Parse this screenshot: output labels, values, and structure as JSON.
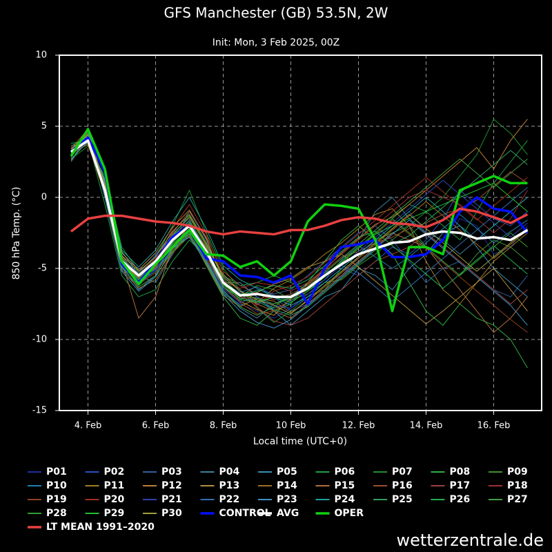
{
  "chart_data": {
    "type": "line",
    "title": "GFS Manchester (GB) 53.5N, 2W",
    "subtitle": "Init: Mon, 3 Feb 2025, 00Z",
    "y_label": "850 hPa Temp. (°C)",
    "x_label": "Local time (UTC+0)",
    "source": "wetterzentrale.de",
    "categories": [
      null,
      "4. Feb",
      null,
      null,
      null,
      "6. Feb",
      null,
      null,
      null,
      "8. Feb",
      null,
      null,
      null,
      "10 Feb",
      null,
      null,
      null,
      "12. Feb",
      null,
      null,
      null,
      "14. Feb",
      null,
      null,
      null,
      "16. Feb",
      null,
      null
    ],
    "ylim": [
      -15,
      10
    ],
    "yticks": [
      -15,
      -10,
      -5,
      0,
      5,
      10
    ],
    "grid": true,
    "series": [
      {
        "name": "P01",
        "color": "#2030a0",
        "width": 1,
        "values": [
          3.0,
          4.3,
          1.0,
          -4.0,
          -5.8,
          -4.0,
          -2.5,
          -1.5,
          -4.5,
          -6.8,
          -7.5,
          -8.0,
          -8.5,
          -7.8,
          -7.0,
          -6.0,
          -5.5,
          -4.2,
          -3.0,
          -2.0,
          -1.0,
          -2.5,
          -3.5,
          -1.5,
          -2.0,
          -4.0,
          -3.5,
          -2.0
        ]
      },
      {
        "name": "P02",
        "color": "#2850c0",
        "width": 1,
        "values": [
          2.8,
          4.5,
          0.0,
          -5.0,
          -6.2,
          -5.0,
          -3.5,
          -2.5,
          -3.5,
          -5.5,
          -6.5,
          -7.5,
          -7.0,
          -8.0,
          -7.5,
          -6.5,
          -5.0,
          -5.5,
          -4.5,
          -3.5,
          -4.0,
          -3.0,
          -1.5,
          0.5,
          -0.5,
          -1.5,
          -2.0,
          -1.0
        ]
      },
      {
        "name": "P03",
        "color": "#3060a0",
        "width": 1,
        "values": [
          3.5,
          3.8,
          0.8,
          -4.2,
          -5.0,
          -4.8,
          -3.2,
          -1.0,
          -3.0,
          -5.8,
          -7.2,
          -6.5,
          -6.8,
          -6.5,
          -5.5,
          -4.5,
          -3.5,
          -2.5,
          -2.0,
          -3.0,
          -4.5,
          -6.0,
          -5.0,
          -4.5,
          -5.5,
          -6.5,
          -7.0,
          -5.5
        ]
      },
      {
        "name": "P04",
        "color": "#4080a0",
        "width": 1,
        "values": [
          2.5,
          4.2,
          1.2,
          -3.8,
          -5.5,
          -6.0,
          -4.0,
          -2.2,
          -4.0,
          -6.5,
          -7.8,
          -8.5,
          -7.5,
          -7.0,
          -6.0,
          -5.0,
          -4.0,
          -3.0,
          -1.0,
          0.0,
          -1.5,
          -2.5,
          -3.0,
          -4.0,
          -3.0,
          -2.0,
          -1.0,
          0.0
        ]
      },
      {
        "name": "P05",
        "color": "#3a90b0",
        "width": 1,
        "values": [
          3.0,
          4.6,
          0.2,
          -4.8,
          -6.5,
          -5.5,
          -3.0,
          -1.8,
          -3.5,
          -6.0,
          -6.0,
          -7.0,
          -8.0,
          -9.0,
          -8.0,
          -7.0,
          -6.5,
          -5.0,
          -5.5,
          -6.5,
          -5.0,
          -4.0,
          -2.5,
          -2.0,
          -3.5,
          -5.0,
          -6.0,
          -7.0
        ]
      },
      {
        "name": "P06",
        "color": "#20a040",
        "width": 1,
        "values": [
          3.8,
          4.0,
          -0.5,
          -5.5,
          -7.0,
          -6.5,
          -4.5,
          -3.0,
          -4.2,
          -5.5,
          -6.2,
          -6.0,
          -5.5,
          -6.0,
          -6.5,
          -5.5,
          -4.5,
          -3.5,
          -2.5,
          -1.5,
          -0.5,
          -1.0,
          -2.0,
          -3.0,
          -1.0,
          1.0,
          2.5,
          4.0
        ]
      },
      {
        "name": "P07",
        "color": "#209030",
        "width": 1,
        "values": [
          2.7,
          3.6,
          1.5,
          -3.5,
          -5.2,
          -4.2,
          -2.0,
          0.5,
          -2.5,
          -5.0,
          -6.5,
          -7.8,
          -8.8,
          -8.0,
          -7.0,
          -6.5,
          -5.0,
          -4.0,
          -3.0,
          -2.5,
          -2.0,
          -1.0,
          0.0,
          1.5,
          3.0,
          5.5,
          4.5,
          3.0
        ]
      },
      {
        "name": "P08",
        "color": "#30b040",
        "width": 1,
        "values": [
          3.1,
          4.4,
          0.6,
          -4.6,
          -5.8,
          -5.0,
          -3.8,
          -2.5,
          -4.8,
          -7.0,
          -8.5,
          -9.0,
          -8.0,
          -7.5,
          -6.0,
          -4.5,
          -3.0,
          -2.0,
          -3.0,
          -4.0,
          -6.0,
          -8.0,
          -9.0,
          -7.5,
          -8.5,
          -9.0,
          -10.0,
          -12.0
        ]
      },
      {
        "name": "P09",
        "color": "#409030",
        "width": 1,
        "values": [
          3.3,
          3.9,
          0.9,
          -4.4,
          -5.6,
          -4.6,
          -2.8,
          -1.6,
          -3.6,
          -6.2,
          -7.0,
          -6.2,
          -6.5,
          -7.2,
          -6.8,
          -6.0,
          -5.8,
          -4.8,
          -4.0,
          -3.0,
          -2.0,
          -3.5,
          -4.5,
          -5.5,
          -4.0,
          -3.0,
          -3.5,
          -4.5
        ]
      },
      {
        "name": "P10",
        "color": "#2080b0",
        "width": 1,
        "values": [
          2.9,
          4.1,
          0.3,
          -4.9,
          -6.0,
          -5.2,
          -3.6,
          -2.6,
          -4.4,
          -6.6,
          -7.6,
          -7.2,
          -7.8,
          -7.4,
          -6.6,
          -5.8,
          -4.4,
          -3.4,
          -4.2,
          -5.0,
          -4.2,
          -3.2,
          -2.2,
          -1.2,
          -2.2,
          -3.2,
          -2.4,
          -1.6
        ]
      },
      {
        "name": "P11",
        "color": "#a08020",
        "width": 1,
        "values": [
          3.4,
          4.8,
          0.7,
          -4.3,
          -5.4,
          -4.4,
          -2.6,
          -1.4,
          -3.4,
          -5.4,
          -6.6,
          -7.4,
          -6.4,
          -5.8,
          -5.0,
          -4.0,
          -3.2,
          -2.2,
          -1.2,
          -0.8,
          -2.0,
          -4.5,
          -6.5,
          -7.5,
          -6.0,
          -4.5,
          -3.5,
          -2.5
        ]
      },
      {
        "name": "P12",
        "color": "#c08030",
        "width": 1,
        "values": [
          3.2,
          3.7,
          0.4,
          -4.6,
          -5.7,
          -4.7,
          -3.3,
          -2.3,
          -4.1,
          -6.3,
          -7.3,
          -7.9,
          -8.3,
          -7.1,
          -6.1,
          -5.1,
          -3.9,
          -2.9,
          -1.9,
          -1.4,
          -0.5,
          0.5,
          1.5,
          2.5,
          3.5,
          2.0,
          4.0,
          5.5
        ]
      },
      {
        "name": "P13",
        "color": "#b09040",
        "width": 1,
        "values": [
          2.6,
          4.3,
          1.1,
          -3.9,
          -5.1,
          -3.9,
          -2.1,
          -0.9,
          -2.9,
          -5.9,
          -6.9,
          -6.7,
          -6.1,
          -5.7,
          -4.9,
          -4.5,
          -4.0,
          -4.9,
          -5.9,
          -6.9,
          -7.9,
          -8.9,
          -8.0,
          -7.0,
          -6.0,
          -5.0,
          -6.5,
          -8.0
        ]
      },
      {
        "name": "P14",
        "color": "#a07020",
        "width": 1,
        "values": [
          3.6,
          4.2,
          0.1,
          -5.1,
          -6.4,
          -5.8,
          -3.9,
          -2.7,
          -4.7,
          -6.9,
          -7.7,
          -7.1,
          -7.3,
          -8.1,
          -7.3,
          -6.3,
          -5.3,
          -4.3,
          -3.3,
          -2.3,
          -1.3,
          -0.3,
          -1.3,
          -2.3,
          -3.3,
          -4.3,
          -3.3,
          -2.3
        ]
      },
      {
        "name": "P15",
        "color": "#b07040",
        "width": 1,
        "values": [
          3.0,
          4.0,
          0.5,
          -4.5,
          -8.5,
          -7.0,
          -3.5,
          -2.0,
          -3.5,
          -6.0,
          -7.0,
          -7.5,
          -8.0,
          -8.5,
          -7.5,
          -6.5,
          -5.5,
          -4.5,
          -3.5,
          -2.5,
          -3.0,
          -3.5,
          -5.0,
          -6.5,
          -8.0,
          -9.5,
          -8.5,
          -7.0
        ]
      },
      {
        "name": "P16",
        "color": "#a05030",
        "width": 1,
        "values": [
          3.3,
          4.5,
          0.8,
          -4.2,
          -5.5,
          -5.0,
          -2.5,
          -1.0,
          -2.8,
          -5.2,
          -6.2,
          -6.8,
          -7.2,
          -6.8,
          -6.2,
          -5.2,
          -4.2,
          -3.8,
          -3.2,
          -2.8,
          -2.2,
          -1.8,
          -1.2,
          -0.8,
          -0.2,
          0.8,
          1.8,
          1.0
        ]
      },
      {
        "name": "P17",
        "color": "#a04040",
        "width": 1,
        "values": [
          2.8,
          4.6,
          0.3,
          -4.7,
          -5.9,
          -4.9,
          -3.1,
          -2.1,
          -4.1,
          -6.1,
          -6.8,
          -7.7,
          -8.7,
          -9.0,
          -8.5,
          -7.5,
          -6.5,
          -5.5,
          -4.5,
          -4.0,
          -3.5,
          -2.5,
          -3.5,
          -4.5,
          -5.5,
          -6.5,
          -7.5,
          -6.5
        ]
      },
      {
        "name": "P18",
        "color": "#a03030",
        "width": 1,
        "values": [
          3.5,
          4.1,
          0.6,
          -4.4,
          -5.3,
          -4.3,
          -2.9,
          -1.9,
          -3.9,
          -5.9,
          -6.4,
          -6.0,
          -6.2,
          -6.6,
          -6.0,
          -5.0,
          -4.0,
          -3.0,
          -2.0,
          -1.0,
          0.0,
          0.5,
          0.0,
          -0.5,
          -1.5,
          -2.5,
          -1.5,
          0.5
        ]
      },
      {
        "name": "P19",
        "color": "#904020",
        "width": 1,
        "values": [
          3.1,
          3.8,
          0.2,
          -4.8,
          -6.1,
          -5.3,
          -3.7,
          -2.4,
          -4.3,
          -6.4,
          -7.4,
          -8.2,
          -8.0,
          -7.2,
          -6.6,
          -5.6,
          -4.6,
          -3.6,
          -2.6,
          -1.6,
          -2.6,
          -3.6,
          -4.6,
          -5.6,
          -6.6,
          -7.6,
          -8.6,
          -9.5
        ]
      },
      {
        "name": "P20",
        "color": "#a03020",
        "width": 1,
        "values": [
          2.9,
          4.4,
          0.9,
          -4.1,
          -5.6,
          -4.6,
          -2.2,
          -0.5,
          -2.6,
          -5.6,
          -6.6,
          -7.6,
          -6.6,
          -6.2,
          -5.6,
          -4.6,
          -3.6,
          -2.6,
          -1.6,
          -0.6,
          0.4,
          1.4,
          0.4,
          -0.6,
          -1.6,
          -0.6,
          0.4,
          1.4
        ]
      },
      {
        "name": "P21",
        "color": "#3040b0",
        "width": 1,
        "values": [
          3.4,
          4.2,
          0.4,
          -4.6,
          -5.9,
          -5.1,
          -3.4,
          -2.4,
          -4.4,
          -6.4,
          -7.4,
          -7.0,
          -7.6,
          -7.8,
          -6.8,
          -5.8,
          -4.8,
          -3.8,
          -2.8,
          -1.8,
          -0.8,
          0.2,
          1.2,
          0.2,
          -0.8,
          -1.8,
          -2.8,
          -1.8
        ]
      },
      {
        "name": "P22",
        "color": "#3070b0",
        "width": 1,
        "values": [
          3.0,
          4.0,
          0.8,
          -4.3,
          -5.3,
          -4.1,
          -2.7,
          -1.7,
          -3.7,
          -6.0,
          -6.7,
          -6.3,
          -6.9,
          -7.3,
          -6.3,
          -5.3,
          -4.8,
          -5.3,
          -6.3,
          -7.3,
          -6.3,
          -5.3,
          -4.3,
          -3.3,
          -2.3,
          -1.3,
          -0.3,
          0.7
        ]
      },
      {
        "name": "P23",
        "color": "#4090c0",
        "width": 1,
        "values": [
          3.2,
          4.7,
          0.0,
          -5.2,
          -6.6,
          -5.6,
          -3.6,
          -2.8,
          -4.6,
          -6.8,
          -8.0,
          -8.8,
          -9.2,
          -8.6,
          -7.6,
          -6.6,
          -5.6,
          -4.6,
          -3.6,
          -2.6,
          -1.6,
          -2.6,
          -3.6,
          -4.6,
          -5.6,
          -6.6,
          -7.6,
          -9.0
        ]
      },
      {
        "name": "P24",
        "color": "#20a0a0",
        "width": 1,
        "values": [
          2.7,
          3.9,
          1.3,
          -3.7,
          -4.9,
          -3.7,
          -1.7,
          0.0,
          -2.2,
          -4.8,
          -5.8,
          -6.4,
          -7.0,
          -7.6,
          -7.0,
          -6.0,
          -5.0,
          -4.0,
          -3.0,
          -2.0,
          -1.0,
          0.0,
          -1.0,
          -2.0,
          -3.0,
          -2.0,
          -1.0,
          0.0
        ]
      },
      {
        "name": "P25",
        "color": "#30a060",
        "width": 1,
        "values": [
          3.6,
          4.3,
          0.5,
          -4.5,
          -5.6,
          -4.8,
          -3.3,
          -2.2,
          -4.0,
          -6.3,
          -7.1,
          -7.3,
          -7.9,
          -8.3,
          -7.7,
          -6.7,
          -5.7,
          -4.7,
          -3.7,
          -3.3,
          -2.7,
          -1.7,
          -0.7,
          0.3,
          1.3,
          2.3,
          3.3,
          2.3
        ]
      },
      {
        "name": "P26",
        "color": "#20b050",
        "width": 1,
        "values": [
          3.1,
          4.1,
          0.6,
          -4.4,
          -5.4,
          -4.4,
          -3.0,
          -1.8,
          -3.8,
          -6.0,
          -6.8,
          -6.6,
          -6.2,
          -6.4,
          -5.8,
          -4.8,
          -3.8,
          -2.8,
          -2.4,
          -3.4,
          -4.4,
          -5.4,
          -6.4,
          -5.4,
          -4.4,
          -3.4,
          -4.4,
          -5.4
        ]
      },
      {
        "name": "P27",
        "color": "#40a040",
        "width": 1,
        "values": [
          2.8,
          4.5,
          0.3,
          -4.9,
          -6.3,
          -5.5,
          -3.8,
          -2.6,
          -4.5,
          -6.7,
          -7.7,
          -8.3,
          -7.7,
          -6.9,
          -6.3,
          -5.3,
          -4.3,
          -3.3,
          -2.3,
          -1.3,
          -0.3,
          0.7,
          1.7,
          2.7,
          1.7,
          0.7,
          1.7,
          2.7
        ]
      },
      {
        "name": "P28",
        "color": "#30a030",
        "width": 1,
        "values": [
          3.3,
          4.0,
          0.7,
          -4.3,
          -5.5,
          -4.5,
          -2.7,
          -1.3,
          -3.3,
          -5.7,
          -6.9,
          -7.1,
          -7.5,
          -7.1,
          -6.5,
          -5.5,
          -4.5,
          -3.5,
          -2.5,
          -1.5,
          -2.5,
          -3.5,
          -4.5,
          -5.5,
          -4.5,
          -3.5,
          -2.5,
          -3.5
        ]
      },
      {
        "name": "P29",
        "color": "#20c030",
        "width": 1,
        "values": [
          3.0,
          4.2,
          0.4,
          -4.7,
          -5.8,
          -4.8,
          -3.2,
          -2.0,
          -3.9,
          -6.1,
          -7.2,
          -7.4,
          -7.0,
          -7.4,
          -6.6,
          -5.6,
          -4.6,
          -3.6,
          -2.6,
          -2.0,
          -1.5,
          -1.0,
          -0.5,
          0.0,
          0.5,
          1.0,
          0.0,
          -1.0
        ]
      },
      {
        "name": "P30",
        "color": "#a0a040",
        "width": 1,
        "values": [
          3.4,
          4.4,
          0.9,
          -4.1,
          -5.2,
          -4.2,
          -2.4,
          -1.2,
          -3.2,
          -5.6,
          -6.6,
          -7.2,
          -7.6,
          -8.2,
          -7.2,
          -6.2,
          -5.2,
          -4.2,
          -3.2,
          -2.2,
          -1.2,
          -2.2,
          -3.2,
          -4.2,
          -5.2,
          -4.2,
          -3.2,
          -2.2
        ]
      },
      {
        "name": "CONTROL",
        "color": "#0010ff",
        "width": 3.5,
        "values": [
          3.2,
          4.2,
          1.8,
          -4.7,
          -6.0,
          -4.5,
          -2.8,
          -2.0,
          -4.3,
          -4.5,
          -5.5,
          -5.6,
          -6.0,
          -5.5,
          -7.5,
          -5.0,
          -3.5,
          -3.3,
          -3.0,
          -4.2,
          -4.2,
          -4.0,
          -3.0,
          -1.0,
          0.0,
          -0.8,
          -1.0,
          -2.5
        ]
      },
      {
        "name": "AVG",
        "color": "#ffffff",
        "width": 3.5,
        "values": [
          3.2,
          4.0,
          0.5,
          -4.5,
          -5.5,
          -4.5,
          -3.0,
          -2.0,
          -3.8,
          -6.0,
          -6.9,
          -6.8,
          -7.0,
          -7.0,
          -6.4,
          -5.5,
          -4.7,
          -4.0,
          -3.6,
          -3.2,
          -3.1,
          -2.6,
          -2.4,
          -2.5,
          -2.9,
          -2.8,
          -3.0,
          -2.3
        ]
      },
      {
        "name": "OPER",
        "color": "#10d010",
        "width": 3.5,
        "values": [
          2.9,
          4.8,
          2.0,
          -4.5,
          -6.1,
          -4.7,
          -3.5,
          -2.3,
          -4.0,
          -4.1,
          -4.9,
          -4.5,
          -5.5,
          -4.5,
          -1.7,
          -0.5,
          -0.6,
          -0.8,
          -3.0,
          -8.0,
          -3.5,
          -3.5,
          -4.0,
          0.5,
          1.0,
          1.5,
          1.0,
          1.0
        ]
      },
      {
        "name": "LT MEAN 1991–2020",
        "color": "#e84040",
        "width": 3.5,
        "values": [
          -2.4,
          -1.5,
          -1.3,
          -1.3,
          -1.5,
          -1.7,
          -1.8,
          -2.0,
          -2.4,
          -2.6,
          -2.4,
          -2.5,
          -2.6,
          -2.3,
          -2.3,
          -2.0,
          -1.6,
          -1.4,
          -1.5,
          -1.8,
          -1.9,
          -2.1,
          -1.6,
          -0.8,
          -1.0,
          -1.4,
          -1.8,
          -1.2
        ]
      }
    ]
  }
}
